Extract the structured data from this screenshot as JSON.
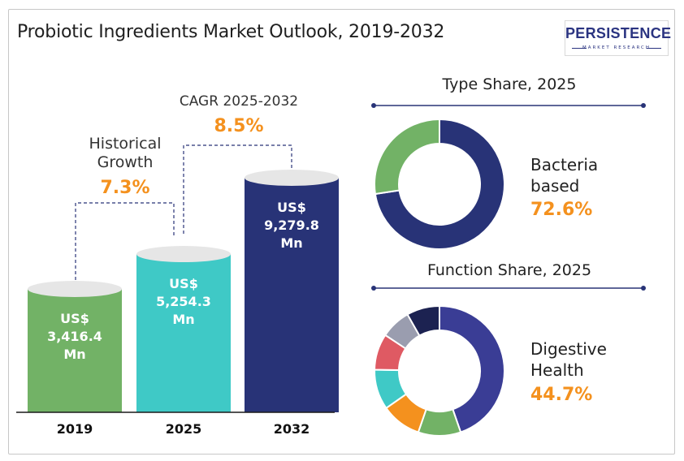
{
  "title": "Probiotic Ingredients Market Outlook, 2019-2032",
  "logo": {
    "brand": "PERSISTENCE",
    "tagline": "MARKET RESEARCH"
  },
  "annotations": {
    "historical_label_line1": "Historical",
    "historical_label_line2": "Growth",
    "historical_value": "7.3%",
    "cagr_label": "CAGR 2025-2032",
    "cagr_value": "8.5%"
  },
  "colors": {
    "green": "#72b266",
    "teal": "#3fc9c6",
    "navy": "#283377",
    "mid_blue": "#3a3d95",
    "orange": "#f4911e",
    "red": "#df5a63",
    "gray": "#9a9daf",
    "dark_navy": "#1c2251",
    "cap": "#e6e6e6",
    "label_accent": "#f4911e"
  },
  "chart_data": [
    {
      "type": "bar",
      "title": "",
      "categories": [
        "2019",
        "2025",
        "2032"
      ],
      "values": [
        3416.4,
        5254.3,
        9279.8
      ],
      "value_labels": [
        [
          "US$",
          "3,416.4",
          "Mn"
        ],
        [
          "US$",
          "5,254.3",
          "Mn"
        ],
        [
          "US$",
          "9,279.8",
          "Mn"
        ]
      ],
      "unit": "US$ Mn"
    },
    {
      "type": "pie",
      "title": "Type Share, 2025",
      "highlight_label_line1": "Bacteria",
      "highlight_label_line2": "based",
      "highlight_value": "72.6%",
      "slices": [
        {
          "value": 72.6,
          "color": "#283377"
        },
        {
          "value": 27.4,
          "color": "#72b266"
        }
      ]
    },
    {
      "type": "pie",
      "title": "Function Share, 2025",
      "highlight_label_line1": "Digestive",
      "highlight_label_line2": "Health",
      "highlight_value": "44.7%",
      "slices": [
        {
          "value": 44.7,
          "color": "#3a3d95"
        },
        {
          "value": 10.6,
          "color": "#72b266"
        },
        {
          "value": 10.0,
          "color": "#f4911e"
        },
        {
          "value": 10.0,
          "color": "#3fc9c6"
        },
        {
          "value": 9.0,
          "color": "#df5a63"
        },
        {
          "value": 7.5,
          "color": "#9a9daf"
        },
        {
          "value": 8.2,
          "color": "#1c2251"
        }
      ]
    }
  ]
}
